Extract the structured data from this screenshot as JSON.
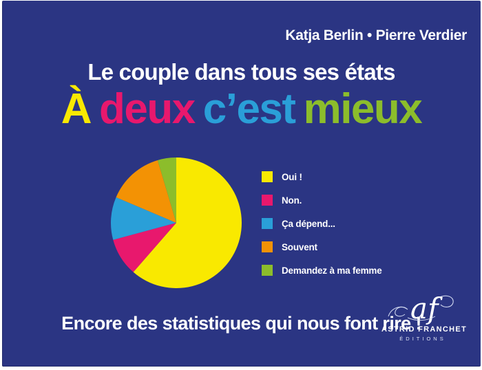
{
  "cover": {
    "background_color": "#2b3583",
    "authors": "Katja Berlin • Pierre Verdier",
    "subtitle": "Le couple dans tous ses états",
    "title_words": [
      {
        "text": "À",
        "color": "#f9e900"
      },
      {
        "text": "deux",
        "color": "#e8186d"
      },
      {
        "text": "c’est",
        "color": "#2a9fd8"
      },
      {
        "text": "mieux",
        "color": "#8cbd2b"
      }
    ],
    "tagline": "Encore des statistiques qui nous font rire !",
    "publisher": {
      "monogram": "af",
      "name": "ASTRID FRANCHET",
      "kind": "ÉDITIONS"
    }
  },
  "chart_data": {
    "type": "pie",
    "title": "",
    "start_angle_deg": 0,
    "direction": "clockwise",
    "legend_position": "right",
    "slices": [
      {
        "label": "Oui !",
        "value": 61.4,
        "color": "#f9e900"
      },
      {
        "label": "Non.",
        "value": 9.4,
        "color": "#e8186d"
      },
      {
        "label": "Ça dépend...",
        "value": 10.6,
        "color": "#2a9fd8"
      },
      {
        "label": "Souvent",
        "value": 14.0,
        "color": "#f39204"
      },
      {
        "label": "Demandez à ma femme",
        "value": 4.6,
        "color": "#8cbd2b"
      }
    ]
  }
}
